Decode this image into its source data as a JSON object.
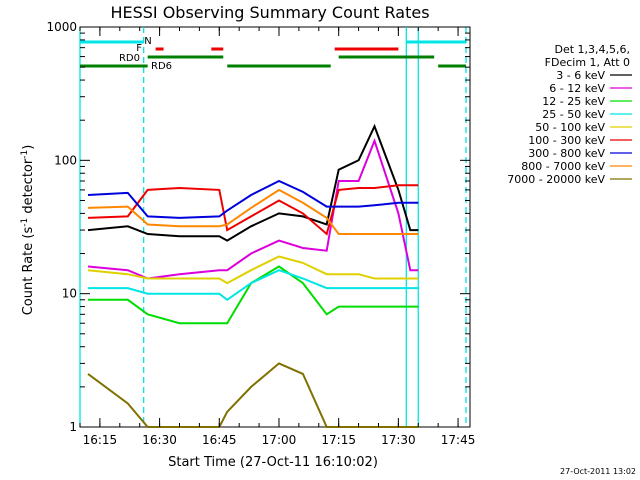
{
  "chart_data": {
    "type": "line",
    "title": "HESSI Observing Summary Count Rates",
    "xlabel": "Start Time (27-Oct-11 16:10:02)",
    "ylabel": "Count Rate (s⁻¹ detector⁻¹)",
    "ylabel_base": "Count Rate (s",
    "ylabel_sup1": "-1",
    "ylabel_mid": " detector",
    "ylabel_sup2": "-1",
    "ylabel_end": ")",
    "y_scale": "log",
    "ylim": [
      1,
      1000
    ],
    "xlim": [
      "16:10",
      "17:48"
    ],
    "x_ticks": [
      "16:15",
      "16:30",
      "16:45",
      "17:00",
      "17:15",
      "17:30",
      "17:45"
    ],
    "y_ticks": [
      "1",
      "10",
      "100",
      "1000"
    ],
    "stamp": "27-Oct-2011 13:02",
    "legend": {
      "header_1": "Det 1,3,4,5,6,",
      "header_2": "FDecim 1, Att 0",
      "entries": [
        {
          "label": "3 - 6 keV",
          "color": "#000000"
        },
        {
          "label": "6 - 12 keV",
          "color": "#dd00dd"
        },
        {
          "label": "12 - 25 keV",
          "color": "#00dd00"
        },
        {
          "label": "25 - 50 keV",
          "color": "#00e5e5"
        },
        {
          "label": "50 - 100 keV",
          "color": "#e0d000"
        },
        {
          "label": "100 - 300 keV",
          "color": "#ee0000"
        },
        {
          "label": "300 - 800 keV",
          "color": "#0000dd"
        },
        {
          "label": "800 - 7000 keV",
          "color": "#ff8800"
        },
        {
          "label": "7000 - 20000 keV",
          "color": "#807000"
        }
      ]
    },
    "flags": [
      {
        "label": "N",
        "color": "#00e5e5",
        "segments": [
          [
            "16:10",
            "16:26"
          ],
          [
            "17:32",
            "17:47"
          ]
        ]
      },
      {
        "label": "F",
        "color": "#ee0000",
        "segments": [
          [
            "16:29",
            "16:31"
          ],
          [
            "16:43",
            "16:46"
          ],
          [
            "17:14",
            "17:30"
          ]
        ]
      },
      {
        "label": "RD0",
        "color": "#008000",
        "segments": [
          [
            "16:27",
            "16:46"
          ],
          [
            "17:15",
            "17:39"
          ]
        ]
      },
      {
        "label": "RD6",
        "color": "#008000",
        "segments": [
          [
            "16:10",
            "16:27"
          ],
          [
            "16:47",
            "17:13"
          ],
          [
            "17:40",
            "17:47"
          ]
        ]
      }
    ],
    "markers": [
      {
        "time": "16:10",
        "color": "#00e5e5",
        "style": "solid"
      },
      {
        "time": "16:26",
        "color": "#00e5e5",
        "style": "dashed"
      },
      {
        "time": "17:32",
        "color": "#00e5e5",
        "style": "solid"
      },
      {
        "time": "17:35",
        "color": "#00e5e5",
        "style": "solid"
      },
      {
        "time": "17:47",
        "color": "#00e5e5",
        "style": "dashed"
      }
    ],
    "x": [
      "16:12",
      "16:22",
      "16:27",
      "16:35",
      "16:45",
      "16:47",
      "16:53",
      "17:00",
      "17:06",
      "17:12",
      "17:15",
      "17:20",
      "17:24",
      "17:30",
      "17:33",
      "17:35"
    ],
    "series": [
      {
        "name": "3 - 6 keV",
        "color": "#000000",
        "values": [
          30,
          32,
          28,
          27,
          27,
          25,
          32,
          40,
          38,
          33,
          85,
          100,
          180,
          60,
          30,
          30
        ]
      },
      {
        "name": "6 - 12 keV",
        "color": "#dd00dd",
        "values": [
          16,
          15,
          13,
          14,
          15,
          15,
          20,
          25,
          22,
          21,
          70,
          70,
          140,
          40,
          15,
          15
        ]
      },
      {
        "name": "12 - 25 keV",
        "color": "#00dd00",
        "values": [
          9,
          9,
          7,
          6,
          6,
          6,
          12,
          16,
          12,
          7,
          8,
          8,
          8,
          8,
          8,
          8
        ]
      },
      {
        "name": "25 - 50 keV",
        "color": "#00e5e5",
        "values": [
          11,
          11,
          10,
          10,
          10,
          9,
          12,
          15,
          13,
          11,
          11,
          11,
          11,
          11,
          11,
          11
        ]
      },
      {
        "name": "50 - 100 keV",
        "color": "#e0d000",
        "values": [
          15,
          14,
          13,
          13,
          13,
          12,
          15,
          19,
          17,
          14,
          14,
          14,
          13,
          13,
          13,
          13
        ]
      },
      {
        "name": "100 - 300 keV",
        "color": "#ee0000",
        "values": [
          37,
          38,
          60,
          62,
          60,
          30,
          38,
          50,
          40,
          28,
          60,
          62,
          62,
          65,
          65,
          65
        ]
      },
      {
        "name": "300 - 800 keV",
        "color": "#0000dd",
        "values": [
          55,
          57,
          38,
          37,
          38,
          42,
          55,
          70,
          58,
          45,
          45,
          45,
          46,
          48,
          48,
          48
        ]
      },
      {
        "name": "800 - 7000 keV",
        "color": "#ff8800",
        "values": [
          44,
          45,
          33,
          32,
          32,
          33,
          44,
          60,
          48,
          37,
          28,
          28,
          28,
          28,
          28,
          28
        ]
      },
      {
        "name": "7000 - 20000 keV",
        "color": "#807000",
        "values": [
          2.5,
          1.5,
          1,
          1,
          1,
          1.3,
          2,
          3,
          2.5,
          1,
          1,
          1,
          1,
          1,
          1,
          1
        ]
      }
    ]
  }
}
